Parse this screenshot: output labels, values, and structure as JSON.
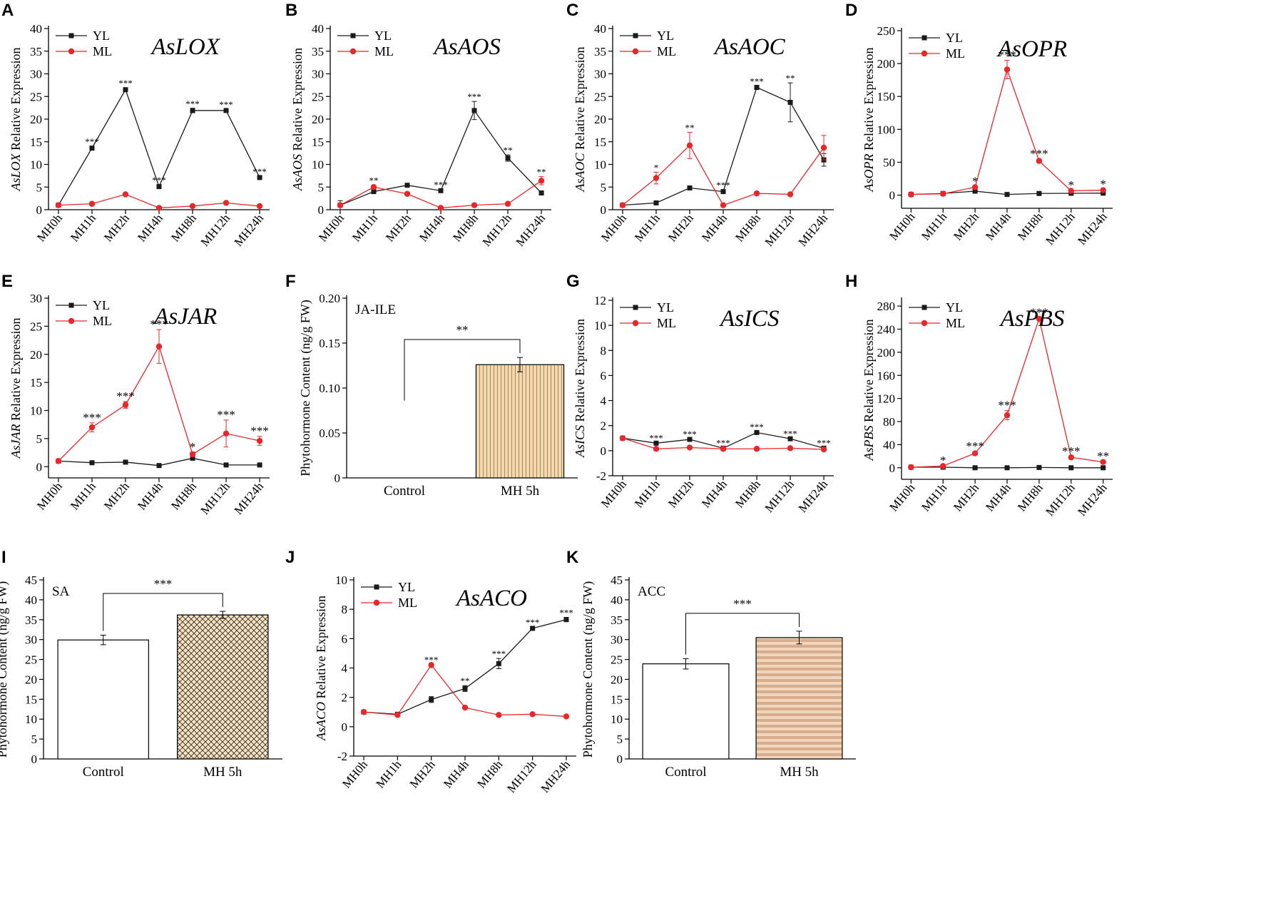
{
  "colors": {
    "yl": "#1a1a1a",
    "ml": "#e8272a"
  },
  "legend": {
    "yl": "YL",
    "ml": "ML"
  },
  "chart_data": [
    {
      "panel": "A",
      "type": "line",
      "gene": "AsLOX",
      "ylabel": "AsLOX Relative Expression",
      "ylabel_gene": "AsLOX",
      "ylabel_rest": " Relative Expression",
      "categories": [
        "MH0h",
        "MH1h",
        "MH2h",
        "MH4h",
        "MH8h",
        "MH12h",
        "MH24h"
      ],
      "ylim": [
        0,
        40
      ],
      "yticks": [
        0,
        5,
        10,
        15,
        20,
        25,
        30,
        35,
        40
      ],
      "series": [
        {
          "name": "YL",
          "values": [
            1,
            13.6,
            26.5,
            5.1,
            21.9,
            21.9,
            7.1
          ],
          "errors": [
            0.2,
            0.4,
            0.4,
            0.4,
            0.5,
            0.3,
            0.3
          ]
        },
        {
          "name": "ML",
          "values": [
            1,
            1.3,
            3.4,
            0.4,
            0.8,
            1.5,
            0.8
          ],
          "errors": [
            0.1,
            0.1,
            0.3,
            0.1,
            0.1,
            0.1,
            0.1
          ]
        }
      ],
      "stars": [
        "",
        "***",
        "***",
        "***",
        "***",
        "***",
        "***"
      ],
      "star_anchor": "YL"
    },
    {
      "panel": "B",
      "type": "line",
      "gene": "AsAOS",
      "ylabel": "AsAOS Relative Expression",
      "ylabel_gene": "AsAOS",
      "ylabel_rest": " Relative Expression",
      "categories": [
        "MH0h",
        "MH1h",
        "MH2h",
        "MH4h",
        "MH8h",
        "MH12h",
        "MH24h"
      ],
      "ylim": [
        0,
        40
      ],
      "yticks": [
        0,
        5,
        10,
        15,
        20,
        25,
        30,
        35,
        40
      ],
      "series": [
        {
          "name": "YL",
          "values": [
            1,
            4,
            5.4,
            4.2,
            21.9,
            11.4,
            3.7
          ],
          "errors": [
            1,
            0.2,
            0.3,
            0.3,
            2,
            0.7,
            0.3
          ]
        },
        {
          "name": "ML",
          "values": [
            1,
            5,
            3.5,
            0.4,
            1,
            1.3,
            6.4
          ],
          "errors": [
            0.3,
            0.4,
            0.3,
            0.1,
            0.1,
            0.1,
            0.9
          ]
        }
      ],
      "stars": [
        "",
        "**",
        "",
        "***",
        "***",
        "**",
        "**"
      ],
      "star_anchor": "max"
    },
    {
      "panel": "C",
      "type": "line",
      "gene": "AsAOC",
      "ylabel": "AsAOC Relative Expression",
      "ylabel_gene": "AsAOC",
      "ylabel_rest": " Relative Expression",
      "categories": [
        "MH0h",
        "MH1h",
        "MH2h",
        "MH4h",
        "MH8h",
        "MH12h",
        "MH24h"
      ],
      "ylim": [
        0,
        40
      ],
      "yticks": [
        0,
        5,
        10,
        15,
        20,
        25,
        30,
        35,
        40
      ],
      "series": [
        {
          "name": "YL",
          "values": [
            1,
            1.5,
            4.8,
            4,
            27,
            23.7,
            11
          ],
          "errors": [
            0.1,
            0.1,
            0.2,
            0.4,
            0.3,
            4.3,
            1.4
          ]
        },
        {
          "name": "ML",
          "values": [
            1,
            7,
            14.2,
            1,
            3.6,
            3.4,
            13.7
          ],
          "errors": [
            0.1,
            1.3,
            2.9,
            0.1,
            0.2,
            0.2,
            2.7
          ]
        }
      ],
      "stars": [
        "",
        "*",
        "**",
        "***",
        "***",
        "**",
        ""
      ],
      "star_anchor": "max"
    },
    {
      "panel": "D",
      "type": "line",
      "gene": "AsOPR",
      "ylabel": "AsOPR Relative Expression",
      "ylabel_gene": "AsOPR",
      "ylabel_rest": " Relative Expression",
      "categories": [
        "MH0h",
        "MH1h",
        "MH2h",
        "MH4h",
        "MH8h",
        "MH12h",
        "MH24h"
      ],
      "ylim": [
        -20,
        250
      ],
      "yticks": [
        0,
        50,
        100,
        150,
        200,
        250
      ],
      "series": [
        {
          "name": "YL",
          "values": [
            1,
            2.5,
            6,
            1,
            2.5,
            2.8,
            3
          ],
          "errors": [
            0.3,
            0.3,
            0.5,
            0.3,
            0.3,
            0.3,
            0.3
          ]
        },
        {
          "name": "ML",
          "values": [
            1,
            2,
            12,
            191,
            52,
            6.5,
            7.6
          ],
          "errors": [
            0.3,
            0.3,
            1.2,
            14,
            3,
            0.8,
            0.9
          ]
        }
      ],
      "stars": [
        "",
        "",
        "*",
        "***",
        "***",
        "*",
        "*"
      ],
      "star_anchor": "max",
      "big_stars": true
    },
    {
      "panel": "E",
      "type": "line",
      "gene": "AsJAR",
      "ylabel": "AsJAR Relative Expression",
      "ylabel_gene": "AsJAR",
      "ylabel_rest": " Relative Expression",
      "categories": [
        "MH0h",
        "MH1h",
        "MH2h",
        "MH4h",
        "MH8h",
        "MH12h",
        "MH24h"
      ],
      "ylim": [
        -2,
        30
      ],
      "yticks": [
        0,
        5,
        10,
        15,
        20,
        25,
        30
      ],
      "series": [
        {
          "name": "YL",
          "values": [
            1,
            0.7,
            0.8,
            0.2,
            1.5,
            0.3,
            0.3
          ],
          "errors": [
            0.1,
            0.1,
            0.1,
            0.1,
            0.2,
            0.1,
            0.1
          ]
        },
        {
          "name": "ML",
          "values": [
            1,
            7,
            11,
            21.4,
            2.2,
            5.9,
            4.6
          ],
          "errors": [
            0.1,
            0.8,
            0.6,
            3,
            0.4,
            2.4,
            0.8
          ]
        }
      ],
      "stars": [
        "",
        "***",
        "***",
        "***",
        "*",
        "***",
        "***"
      ],
      "star_anchor": "max",
      "big_stars": true
    },
    {
      "panel": "F",
      "type": "bar",
      "label": "JA-ILE",
      "ylabel": "Phytohormone Content (ng/g FW)",
      "categories": [
        "Control",
        "MH 5h"
      ],
      "values": [
        0,
        0.126
      ],
      "errors": [
        0,
        0.008
      ],
      "ylim": [
        0,
        0.2
      ],
      "yticks": [
        0,
        0.05,
        0.1,
        0.15,
        0.2
      ],
      "ytick_labels": [
        "0",
        "0.05",
        "0.10",
        "0.15",
        "0.20"
      ],
      "significance": "**",
      "fill": "vertical-stripes"
    },
    {
      "panel": "G",
      "type": "line",
      "gene": "AsICS",
      "ylabel": "AsICS Relative Expression",
      "ylabel_gene": "AsICS",
      "ylabel_rest": " Relative Expression",
      "categories": [
        "MH0h",
        "MH1h",
        "MH2h",
        "MH4h",
        "MH8h",
        "MH12h",
        "MH24h"
      ],
      "ylim": [
        -2,
        12
      ],
      "yticks": [
        -2,
        0,
        2,
        4,
        6,
        8,
        10,
        12
      ],
      "series": [
        {
          "name": "YL",
          "values": [
            1,
            0.6,
            0.9,
            0.2,
            1.45,
            0.95,
            0.2
          ],
          "errors": [
            0.05,
            0.05,
            0.05,
            0.05,
            0.08,
            0.05,
            0.05
          ]
        },
        {
          "name": "ML",
          "values": [
            1,
            0.15,
            0.25,
            0.15,
            0.15,
            0.2,
            0.1
          ],
          "errors": [
            0.05,
            0.05,
            0.05,
            0.05,
            0.05,
            0.05,
            0.05
          ]
        }
      ],
      "stars": [
        "",
        "***",
        "***",
        "***",
        "***",
        "***",
        "***"
      ],
      "star_anchor": "max"
    },
    {
      "panel": "H",
      "type": "line",
      "gene": "AsPBS",
      "ylabel": "AsPBS Relative Expression",
      "ylabel_gene": "AsPBS",
      "ylabel_rest": " Relative Expression",
      "categories": [
        "MH0h",
        "MH1h",
        "MH2h",
        "MH4h",
        "MH8h",
        "MH12h",
        "MH24h"
      ],
      "ylim": [
        -20,
        290
      ],
      "yticks": [
        0,
        40,
        80,
        120,
        160,
        200,
        240,
        280
      ],
      "series": [
        {
          "name": "YL",
          "values": [
            1,
            1,
            0,
            0,
            0.5,
            0,
            0
          ],
          "errors": [
            0.2,
            0.2,
            0.2,
            0.2,
            0.2,
            0.2,
            0.2
          ]
        },
        {
          "name": "ML",
          "values": [
            1,
            3,
            25,
            91,
            258,
            18,
            10
          ],
          "errors": [
            0.3,
            0.5,
            3,
            8,
            1.5,
            1.5,
            1
          ]
        }
      ],
      "stars": [
        "",
        "*",
        "***",
        "***",
        "***",
        "***",
        "**"
      ],
      "star_anchor": "max",
      "big_stars": true
    },
    {
      "panel": "I",
      "type": "bar",
      "label": "SA",
      "ylabel": "Phytohormone Content (ng/g FW)",
      "categories": [
        "Control",
        "MH 5h"
      ],
      "values": [
        29.9,
        36.2
      ],
      "errors": [
        1.2,
        0.9
      ],
      "ylim": [
        0,
        45
      ],
      "yticks": [
        0,
        5,
        10,
        15,
        20,
        25,
        30,
        35,
        40,
        45
      ],
      "significance": "***",
      "fill": "crosshatch"
    },
    {
      "panel": "J",
      "type": "line",
      "gene": "AsACO",
      "ylabel": "AsACO Relative Expression",
      "ylabel_gene": "AsACO",
      "ylabel_rest": " Relative Expression",
      "categories": [
        "MH0h",
        "MH1h",
        "MH2h",
        "MH4h",
        "MH8h",
        "MH12h",
        "MH24h"
      ],
      "ylim": [
        -2,
        10
      ],
      "yticks": [
        -2,
        0,
        2,
        4,
        6,
        8,
        10
      ],
      "series": [
        {
          "name": "YL",
          "values": [
            1,
            0.85,
            1.85,
            2.6,
            4.3,
            6.7,
            7.3
          ],
          "errors": [
            0.05,
            0.05,
            0.2,
            0.2,
            0.35,
            0.1,
            0.15
          ]
        },
        {
          "name": "ML",
          "values": [
            1,
            0.8,
            4.2,
            1.3,
            0.8,
            0.85,
            0.7
          ],
          "errors": [
            0.05,
            0.05,
            0.05,
            0.05,
            0.05,
            0.05,
            0.05
          ]
        }
      ],
      "stars": [
        "",
        "",
        "***",
        "**",
        "***",
        "***",
        "***"
      ],
      "star_anchor": "max"
    },
    {
      "panel": "K",
      "type": "bar",
      "label": "ACC",
      "ylabel": "Phytohormone Content (ng/g FW)",
      "categories": [
        "Control",
        "MH 5h"
      ],
      "values": [
        23.9,
        30.5
      ],
      "errors": [
        1.3,
        1.6
      ],
      "ylim": [
        0,
        45
      ],
      "yticks": [
        0,
        5,
        10,
        15,
        20,
        25,
        30,
        35,
        40,
        45
      ],
      "significance": "***",
      "fill": "horizontal-stripes"
    }
  ]
}
